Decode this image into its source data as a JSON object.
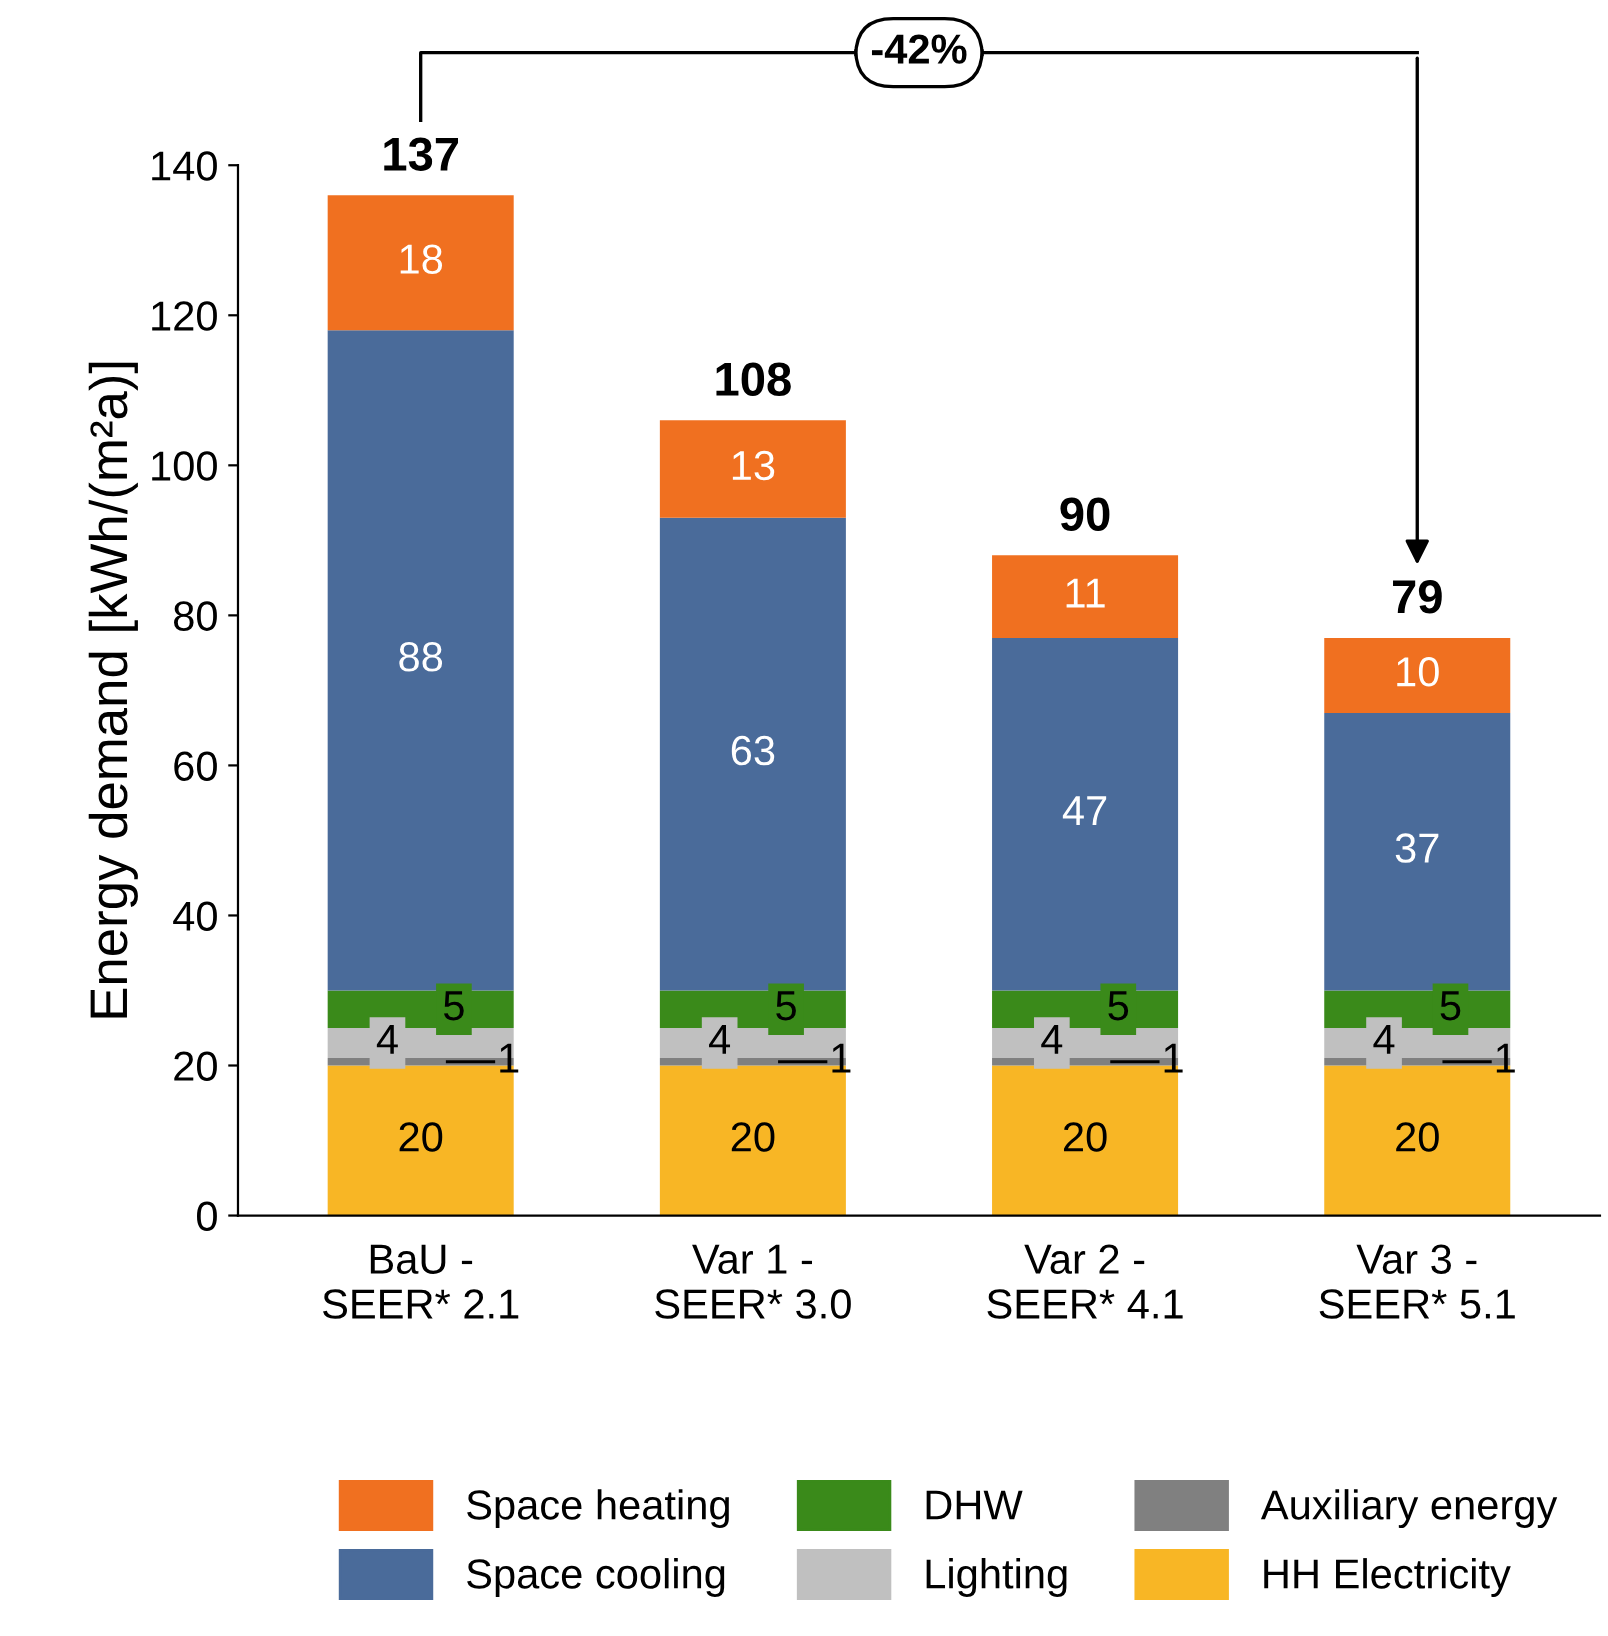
{
  "chart_data": {
    "type": "bar",
    "stacked": true,
    "ylabel": "Energy demand [kWh/(m²a)]",
    "categories": [
      "BaU -\nSEER* 2.1",
      "Var 1 -\nSEER* 3.0",
      "Var 2 -\nSEER* 4.1",
      "Var 3 -\nSEER* 5.1"
    ],
    "series": [
      {
        "name": "HH Electricity",
        "color": "#f8b625",
        "values": [
          20,
          20,
          20,
          20
        ]
      },
      {
        "name": "Auxiliary energy",
        "color": "#808080",
        "values": [
          1,
          1,
          1,
          1
        ]
      },
      {
        "name": "Lighting",
        "color": "#c0c0c0",
        "values": [
          4,
          4,
          4,
          4
        ]
      },
      {
        "name": "DHW",
        "color": "#3a8a1a",
        "values": [
          5,
          5,
          5,
          5
        ]
      },
      {
        "name": "Space cooling",
        "color": "#4a6b9a",
        "values": [
          88,
          63,
          47,
          37
        ]
      },
      {
        "name": "Space heating",
        "color": "#f07020",
        "values": [
          18,
          13,
          11,
          10
        ]
      }
    ],
    "totals": [
      "137",
      "108",
      "90",
      "79"
    ],
    "data_labels": true,
    "annotations": [
      "-42%"
    ],
    "ylim": [
      0,
      140
    ],
    "yticks": [
      0,
      20,
      40,
      60,
      80,
      100,
      120,
      140
    ],
    "grid": false,
    "legend": "bottom"
  }
}
